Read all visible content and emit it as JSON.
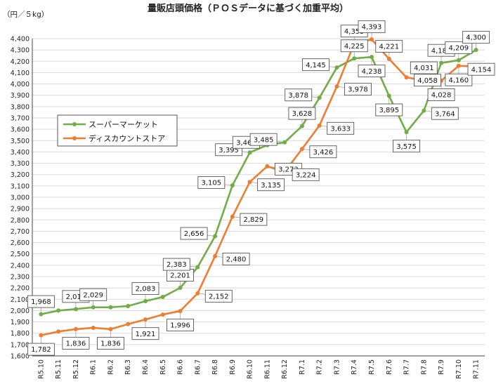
{
  "chart_data": {
    "type": "line",
    "title": "量販店頭価格（ＰＯＳデータに基づく加重平均）",
    "unit_label": "（円／５kg）",
    "xlabel": "",
    "ylabel": "",
    "ylim": [
      1600,
      4400
    ],
    "ytick_step": 100,
    "grid": "horizontal",
    "legend_position": "left-middle",
    "categories": [
      "R5.10",
      "R5.11",
      "R5.12",
      "R6.1",
      "R6.2",
      "R6.3",
      "R6.4",
      "R6.5",
      "R6.6",
      "R6.7",
      "R6.8",
      "R6.9",
      "R6.10",
      "R6.11",
      "R6.12",
      "R7.1",
      "R7.2",
      "R7.3",
      "R7.4",
      "R7.5",
      "R7.6",
      "R7.7",
      "R7.8",
      "R7.9",
      "R7.10",
      "R7.11"
    ],
    "series": [
      {
        "name": "スーパーマーケット",
        "color": "#70ad47",
        "values": [
          1968,
          2000,
          2013,
          2029,
          2029,
          2040,
          2083,
          2120,
          2201,
          2383,
          2656,
          3105,
          3395,
          3460,
          3485,
          3628,
          3878,
          4145,
          4225,
          4238,
          3895,
          3575,
          3764,
          4185,
          4209,
          4300
        ]
      },
      {
        "name": "ディスカウントストア",
        "color": "#ed7d31",
        "values": [
          1782,
          1815,
          1836,
          1848,
          1836,
          1880,
          1921,
          1965,
          1996,
          2152,
          2480,
          2829,
          3135,
          3273,
          3224,
          3426,
          3633,
          3978,
          4355,
          4393,
          4221,
          4058,
          4031,
          4028,
          4160,
          4154
        ]
      }
    ],
    "data_labels": [
      {
        "s": 0,
        "i": 0,
        "text": "1,968"
      },
      {
        "s": 0,
        "i": 2,
        "text": "2,013"
      },
      {
        "s": 0,
        "i": 3,
        "text": "2,029"
      },
      {
        "s": 0,
        "i": 6,
        "text": "2,083"
      },
      {
        "s": 0,
        "i": 8,
        "text": "2,201"
      },
      {
        "s": 0,
        "i": 9,
        "text": "2,383"
      },
      {
        "s": 0,
        "i": 10,
        "text": "2,656"
      },
      {
        "s": 0,
        "i": 11,
        "text": "3,105"
      },
      {
        "s": 0,
        "i": 12,
        "text": "3,395"
      },
      {
        "s": 0,
        "i": 13,
        "text": "3,460"
      },
      {
        "s": 0,
        "i": 14,
        "text": "3,485"
      },
      {
        "s": 0,
        "i": 15,
        "text": "3,628"
      },
      {
        "s": 0,
        "i": 16,
        "text": "3,878"
      },
      {
        "s": 0,
        "i": 17,
        "text": "4,145"
      },
      {
        "s": 0,
        "i": 18,
        "text": "4,225"
      },
      {
        "s": 0,
        "i": 19,
        "text": "4,238"
      },
      {
        "s": 0,
        "i": 20,
        "text": "3,895"
      },
      {
        "s": 0,
        "i": 21,
        "text": "3,575"
      },
      {
        "s": 0,
        "i": 22,
        "text": "3,764"
      },
      {
        "s": 0,
        "i": 23,
        "text": "4,185"
      },
      {
        "s": 0,
        "i": 24,
        "text": "4,209"
      },
      {
        "s": 0,
        "i": 25,
        "text": "4,300"
      },
      {
        "s": 1,
        "i": 0,
        "text": "1,782"
      },
      {
        "s": 1,
        "i": 2,
        "text": "1,836"
      },
      {
        "s": 1,
        "i": 4,
        "text": "1,836"
      },
      {
        "s": 1,
        "i": 6,
        "text": "1,921"
      },
      {
        "s": 1,
        "i": 8,
        "text": "1,996"
      },
      {
        "s": 1,
        "i": 9,
        "text": "2,152"
      },
      {
        "s": 1,
        "i": 10,
        "text": "2,480"
      },
      {
        "s": 1,
        "i": 11,
        "text": "2,829"
      },
      {
        "s": 1,
        "i": 12,
        "text": "3,135"
      },
      {
        "s": 1,
        "i": 13,
        "text": "3,273"
      },
      {
        "s": 1,
        "i": 14,
        "text": "3,224"
      },
      {
        "s": 1,
        "i": 15,
        "text": "3,426"
      },
      {
        "s": 1,
        "i": 16,
        "text": "3,633"
      },
      {
        "s": 1,
        "i": 17,
        "text": "3,978"
      },
      {
        "s": 1,
        "i": 18,
        "text": "4,355"
      },
      {
        "s": 1,
        "i": 19,
        "text": "4,393"
      },
      {
        "s": 1,
        "i": 20,
        "text": "4,221"
      },
      {
        "s": 1,
        "i": 21,
        "text": "4,058"
      },
      {
        "s": 1,
        "i": 22,
        "text": "4,031"
      },
      {
        "s": 1,
        "i": 23,
        "text": "4,028"
      },
      {
        "s": 1,
        "i": 24,
        "text": "4,160"
      },
      {
        "s": 1,
        "i": 25,
        "text": "4,154"
      }
    ]
  }
}
